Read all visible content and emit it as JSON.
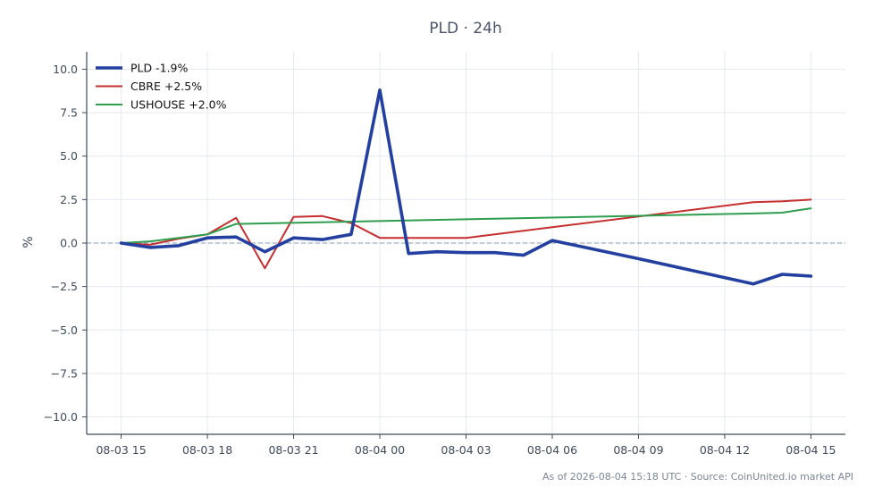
{
  "chart_data": {
    "type": "line",
    "title": "PLD · 24h",
    "xlabel": "",
    "ylabel": "%",
    "x_tick_labels": [
      "08-03 15",
      "08-03 18",
      "08-03 21",
      "08-04 00",
      "08-04 03",
      "08-04 06",
      "08-04 09",
      "08-04 12",
      "08-04 15"
    ],
    "x_tick_hours": [
      0,
      3,
      6,
      9,
      12,
      15,
      18,
      21,
      24
    ],
    "xlim_hours": [
      -1.2,
      25.2
    ],
    "ylim": [
      -11,
      11
    ],
    "y_ticks": [
      -10.0,
      -7.5,
      -5.0,
      -2.5,
      0.0,
      2.5,
      5.0,
      7.5,
      10.0
    ],
    "y_tick_labels": [
      "−10.0",
      "−7.5",
      "−5.0",
      "−2.5",
      "0.0",
      "2.5",
      "5.0",
      "7.5",
      "10.0"
    ],
    "grid": true,
    "zero_line": true,
    "legend_position": "top-left",
    "series": [
      {
        "name": "PLD -1.9%",
        "color": "#2340a0",
        "emphasis": true,
        "x": [
          0,
          1,
          2,
          3,
          4,
          5,
          6,
          7,
          8,
          9,
          10,
          11,
          12,
          13,
          14,
          15,
          24
        ],
        "y": [
          0.0,
          -0.25,
          -0.15,
          0.3,
          0.35,
          -0.5,
          0.3,
          0.2,
          0.5,
          8.8,
          -0.6,
          -0.5,
          -0.55,
          -0.55,
          -0.7,
          0.15,
          -1.9
        ],
        "x_extra": [
          18,
          22,
          23
        ],
        "y_extra": [
          -0.9,
          -2.35,
          -1.8
        ]
      },
      {
        "name": "CBRE +2.5%",
        "color": "#c62f2f",
        "emphasis": false,
        "x": [
          0,
          1,
          2,
          3,
          4,
          5,
          6,
          7,
          8,
          9,
          10,
          11,
          12,
          22,
          23,
          24
        ],
        "y": [
          0.0,
          -0.1,
          0.25,
          0.5,
          1.45,
          -1.45,
          1.5,
          1.55,
          1.15,
          0.3,
          0.3,
          0.3,
          0.3,
          2.35,
          2.4,
          2.5
        ]
      },
      {
        "name": "USHOUSE +2.0%",
        "color": "#2e9e4e",
        "emphasis": false,
        "x": [
          0,
          1,
          2,
          3,
          4,
          22,
          23,
          24
        ],
        "y": [
          0.0,
          0.1,
          0.3,
          0.5,
          1.1,
          1.7,
          1.75,
          2.0
        ]
      }
    ]
  },
  "footer": "As of 2026-08-04 15:18 UTC · Source: CoinUnited.io market API"
}
